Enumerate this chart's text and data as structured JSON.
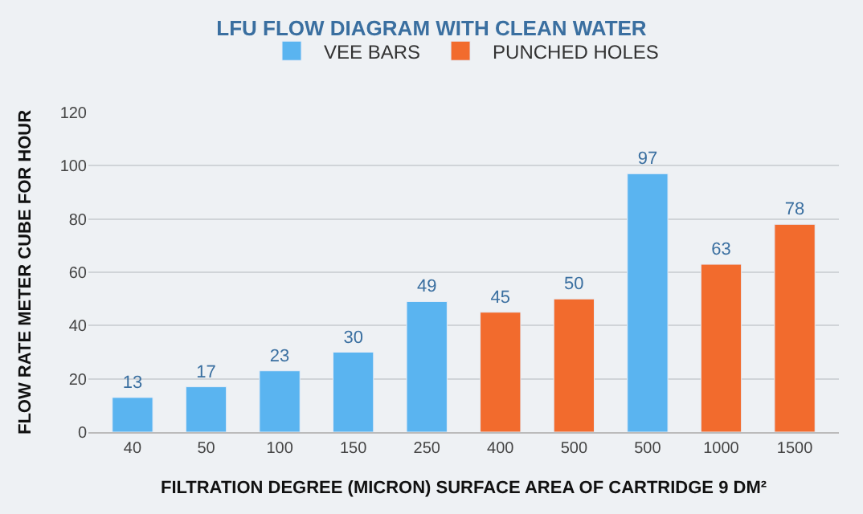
{
  "chart_data": {
    "type": "bar",
    "title": "LFU FLOW DIAGRAM WITH CLEAN WATER",
    "xlabel": "FILTRATION DEGREE (MICRON) SURFACE AREA OF CARTRIDGE 9 DM²",
    "ylabel": "FLOW RATE METER CUBE FOR HOUR",
    "categories": [
      "40",
      "50",
      "100",
      "150",
      "250",
      "400",
      "500",
      "500",
      "1000",
      "1500"
    ],
    "series": [
      {
        "name": "VEE BARS",
        "color": "#5ab4f0",
        "values": [
          13,
          17,
          23,
          30,
          49,
          null,
          null,
          97,
          null,
          null
        ]
      },
      {
        "name": "PUNCHED HOLES",
        "color": "#f26b2d",
        "values": [
          null,
          null,
          null,
          null,
          null,
          45,
          50,
          null,
          63,
          78
        ]
      }
    ],
    "ylim": [
      0,
      120
    ],
    "yticks": [
      0,
      20,
      40,
      60,
      80,
      100,
      120
    ],
    "grid": "y",
    "legend": "top",
    "data_labels": true
  }
}
